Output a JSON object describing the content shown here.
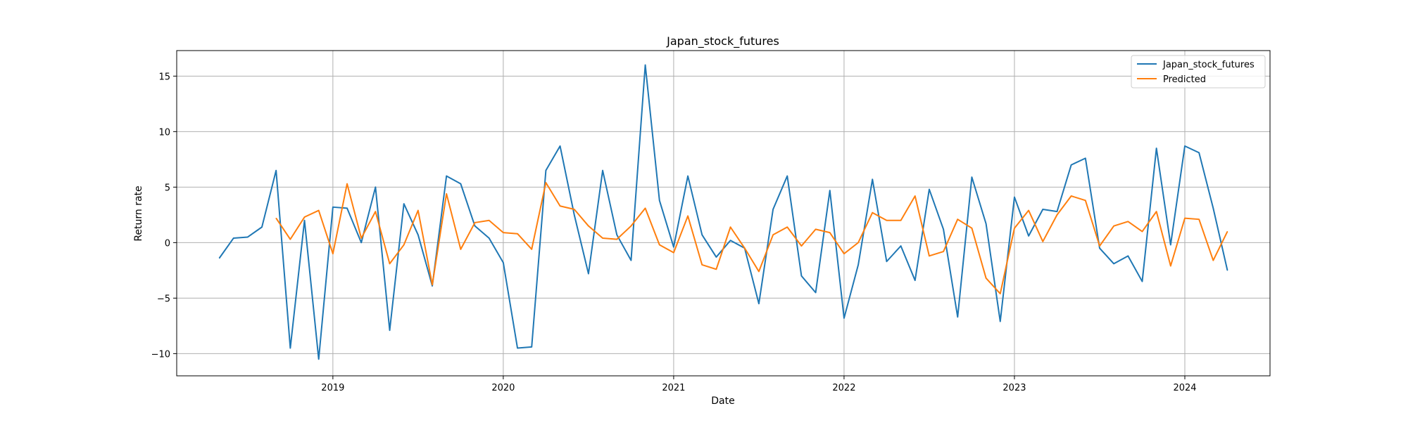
{
  "chart_data": {
    "type": "line",
    "title": "Japan_stock_futures",
    "xlabel": "Date",
    "ylabel": "Return rate",
    "xlim": [
      "2018-02",
      "2024-07"
    ],
    "ylim": [
      -12,
      17.3
    ],
    "x_ticks": [
      "2019",
      "2020",
      "2021",
      "2022",
      "2023",
      "2024"
    ],
    "y_ticks": [
      -10,
      -5,
      0,
      5,
      10,
      15
    ],
    "y_tick_labels": [
      "−10",
      "−5",
      "0",
      "5",
      "10",
      "15"
    ],
    "grid": true,
    "legend_position": "top-right",
    "series": [
      {
        "name": "Japan_stock_futures",
        "color": "#1f77b4",
        "x": [
          "2018-05",
          "2018-06",
          "2018-07",
          "2018-08",
          "2018-09",
          "2018-10",
          "2018-11",
          "2018-12",
          "2019-01",
          "2019-02",
          "2019-03",
          "2019-04",
          "2019-05",
          "2019-06",
          "2019-07",
          "2019-08",
          "2019-09",
          "2019-10",
          "2019-11",
          "2019-12",
          "2020-01",
          "2020-02",
          "2020-03",
          "2020-04",
          "2020-05",
          "2020-06",
          "2020-07",
          "2020-08",
          "2020-09",
          "2020-10",
          "2020-11",
          "2020-12",
          "2021-01",
          "2021-02",
          "2021-03",
          "2021-04",
          "2021-05",
          "2021-06",
          "2021-07",
          "2021-08",
          "2021-09",
          "2021-10",
          "2021-11",
          "2021-12",
          "2022-01",
          "2022-02",
          "2022-03",
          "2022-04",
          "2022-05",
          "2022-06",
          "2022-07",
          "2022-08",
          "2022-09",
          "2022-10",
          "2022-11",
          "2022-12",
          "2023-01",
          "2023-02",
          "2023-03",
          "2023-04",
          "2023-05",
          "2023-06",
          "2023-07",
          "2023-08",
          "2023-09",
          "2023-10",
          "2023-11",
          "2023-12",
          "2024-01",
          "2024-02",
          "2024-03",
          "2024-04"
        ],
        "values": [
          -1.4,
          0.4,
          0.5,
          1.4,
          6.5,
          -9.5,
          2.0,
          -10.5,
          3.2,
          3.1,
          0.0,
          5.0,
          -7.9,
          3.5,
          0.7,
          -3.9,
          6.0,
          5.3,
          1.5,
          0.4,
          -1.8,
          -9.5,
          -9.4,
          6.5,
          8.7,
          2.5,
          -2.8,
          6.5,
          0.7,
          -1.6,
          16.0,
          3.8,
          -0.4,
          6.0,
          0.7,
          -1.3,
          0.2,
          -0.5,
          -5.5,
          3.0,
          6.0,
          -3.0,
          -4.5,
          4.7,
          -6.8,
          -2.0,
          5.7,
          -1.7,
          -0.3,
          -3.4,
          4.8,
          1.2,
          -6.7,
          5.9,
          1.7,
          -7.1,
          4.1,
          0.6,
          3.0,
          2.8,
          7.0,
          7.6,
          -0.5,
          -1.9,
          -1.2,
          -3.5,
          8.5,
          -0.2,
          8.7,
          8.1,
          3.1,
          -2.5
        ]
      },
      {
        "name": "Predicted",
        "color": "#ff7f0e",
        "x": [
          "2018-09",
          "2018-10",
          "2018-11",
          "2018-12",
          "2019-01",
          "2019-02",
          "2019-03",
          "2019-04",
          "2019-05",
          "2019-06",
          "2019-07",
          "2019-08",
          "2019-09",
          "2019-10",
          "2019-11",
          "2019-12",
          "2020-01",
          "2020-02",
          "2020-03",
          "2020-04",
          "2020-05",
          "2020-06",
          "2020-07",
          "2020-08",
          "2020-09",
          "2020-10",
          "2020-11",
          "2020-12",
          "2021-01",
          "2021-02",
          "2021-03",
          "2021-04",
          "2021-05",
          "2021-06",
          "2021-07",
          "2021-08",
          "2021-09",
          "2021-10",
          "2021-11",
          "2021-12",
          "2022-01",
          "2022-02",
          "2022-03",
          "2022-04",
          "2022-05",
          "2022-06",
          "2022-07",
          "2022-08",
          "2022-09",
          "2022-10",
          "2022-11",
          "2022-12",
          "2023-01",
          "2023-02",
          "2023-03",
          "2023-04",
          "2023-05",
          "2023-06",
          "2023-07",
          "2023-08",
          "2023-09",
          "2023-10",
          "2023-11",
          "2023-12",
          "2024-01",
          "2024-02",
          "2024-03",
          "2024-04"
        ],
        "values": [
          2.2,
          0.3,
          2.3,
          2.9,
          -1.0,
          5.3,
          0.4,
          2.8,
          -1.9,
          -0.2,
          2.9,
          -3.8,
          4.4,
          -0.6,
          1.8,
          2.0,
          0.9,
          0.8,
          -0.6,
          5.4,
          3.3,
          3.0,
          1.5,
          0.4,
          0.3,
          1.5,
          3.1,
          -0.2,
          -0.9,
          2.4,
          -2.0,
          -2.4,
          1.4,
          -0.5,
          -2.6,
          0.7,
          1.4,
          -0.3,
          1.2,
          0.9,
          -1.0,
          0.0,
          2.7,
          2.0,
          2.0,
          4.2,
          -1.2,
          -0.8,
          2.1,
          1.3,
          -3.2,
          -4.6,
          1.3,
          2.9,
          0.1,
          2.5,
          4.2,
          3.8,
          -0.3,
          1.5,
          1.9,
          1.0,
          2.8,
          -2.1,
          2.2,
          2.1,
          -1.6,
          1.0
        ]
      }
    ]
  }
}
